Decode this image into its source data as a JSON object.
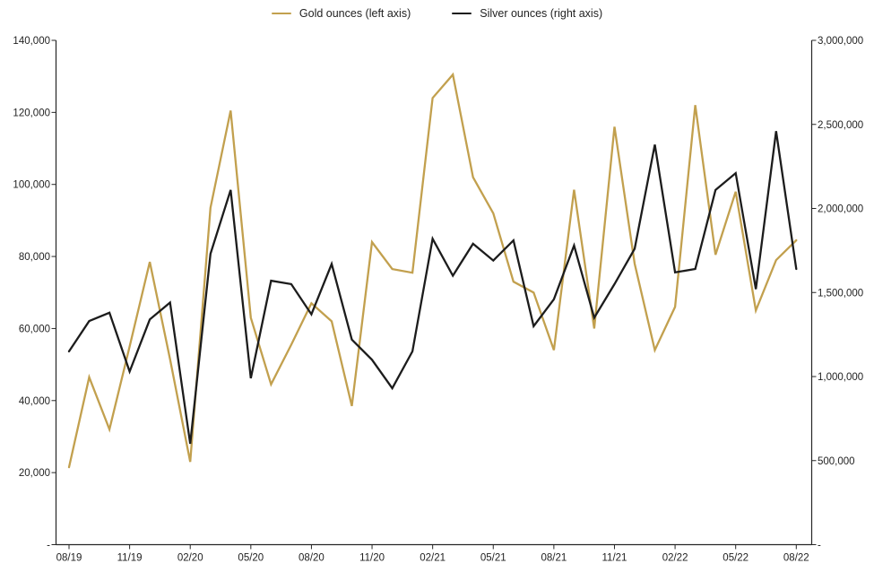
{
  "legend": {
    "items": [
      {
        "label": "Gold ounces (left axis)",
        "color": "#C2A04E",
        "swatch_icon": "line-swatch"
      },
      {
        "label": "Silver ounces (right axis)",
        "color": "#1C1C1C",
        "swatch_icon": "line-swatch"
      }
    ]
  },
  "chart_data": {
    "type": "line",
    "title": "",
    "grid": false,
    "legend_position": "top-center",
    "x": [
      "08/19",
      "09/19",
      "10/19",
      "11/19",
      "12/19",
      "01/20",
      "02/20",
      "03/20",
      "04/20",
      "05/20",
      "06/20",
      "07/20",
      "08/20",
      "09/20",
      "10/20",
      "11/20",
      "12/20",
      "01/21",
      "02/21",
      "03/21",
      "04/21",
      "05/21",
      "06/21",
      "07/21",
      "08/21",
      "09/21",
      "10/21",
      "11/21",
      "12/21",
      "01/22",
      "02/22",
      "03/22",
      "04/22",
      "05/22",
      "06/22",
      "07/22",
      "08/22"
    ],
    "x_tick_labels": [
      "08/19",
      "11/19",
      "02/20",
      "05/20",
      "08/20",
      "11/20",
      "02/21",
      "05/21",
      "08/21",
      "11/21",
      "02/22",
      "05/22",
      "08/22"
    ],
    "x_tick_every": 3,
    "series": [
      {
        "name": "Gold ounces (left axis)",
        "axis": "left",
        "color": "#C2A04E",
        "values": [
          21500,
          46500,
          32000,
          55000,
          78500,
          51500,
          23000,
          93500,
          120500,
          63000,
          44500,
          55500,
          67000,
          62000,
          38500,
          84000,
          76500,
          75500,
          124000,
          130500,
          102000,
          92000,
          73000,
          70000,
          54000,
          98500,
          60000,
          116000,
          78000,
          54000,
          66000,
          122000,
          80500,
          98000,
          65000,
          79000,
          84500
        ]
      },
      {
        "name": "Silver ounces (right axis)",
        "axis": "right",
        "color": "#1C1C1C",
        "values": [
          1150000,
          1330000,
          1380000,
          1030000,
          1340000,
          1440000,
          600000,
          1730000,
          2110000,
          990000,
          1570000,
          1550000,
          1370000,
          1670000,
          1220000,
          1100000,
          930000,
          1150000,
          1820000,
          1600000,
          1790000,
          1690000,
          1810000,
          1300000,
          1460000,
          1780000,
          1350000,
          1550000,
          1760000,
          2380000,
          1620000,
          1640000,
          2110000,
          2210000,
          1520000,
          2460000,
          1640000
        ]
      }
    ],
    "left_axis": {
      "min": 0,
      "max": 140000,
      "tick_values": [
        140000,
        120000,
        100000,
        80000,
        60000,
        40000,
        20000,
        0
      ],
      "tick_labels": [
        "140,000",
        "120,000",
        "100,000",
        "80,000",
        "60,000",
        "40,000",
        "20,000",
        "-"
      ]
    },
    "right_axis": {
      "min": 0,
      "max": 3000000,
      "tick_values": [
        3000000,
        2500000,
        2000000,
        1500000,
        1000000,
        500000,
        0
      ],
      "tick_labels": [
        "3,000,000",
        "2,500,000",
        "2,000,000",
        "1,500,000",
        "1,000,000",
        "500,000",
        "-"
      ]
    }
  }
}
